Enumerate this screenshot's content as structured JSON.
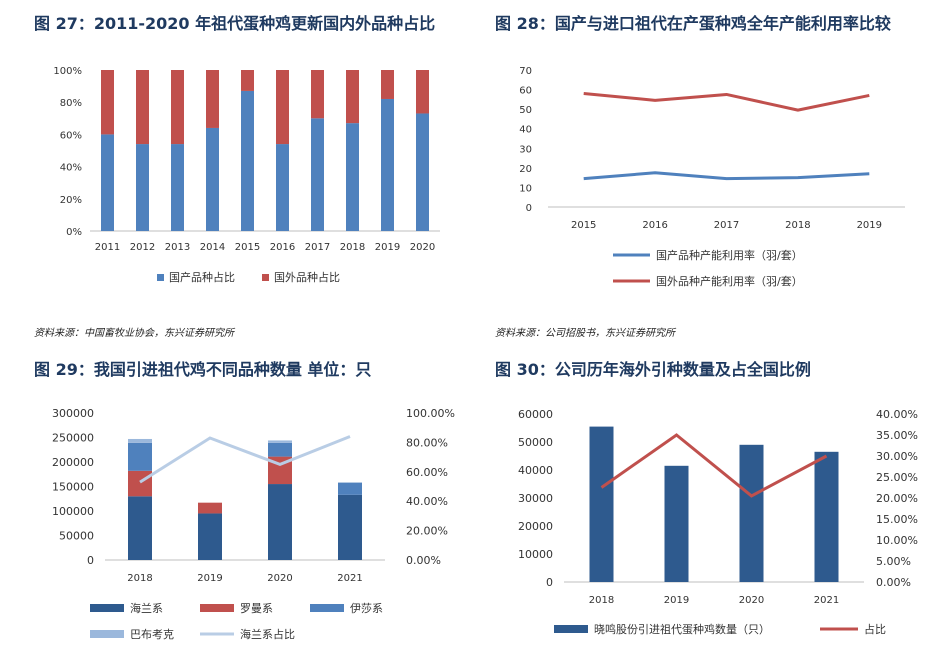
{
  "titles": {
    "fig27": "图 27：2011-2020 年祖代蛋种鸡更新国内外品种占比",
    "fig28": "图 28：国产与进口祖代在产蛋种鸡全年产能利用率比较",
    "fig29": "图 29：我国引进祖代鸡不同品种数量 单位：只",
    "fig30": "图 30：公司历年海外引种数量及占全国比例"
  },
  "sources": {
    "left": "资料来源：中国畜牧业协会，东兴证券研究所",
    "right": "资料来源：公司招股书，东兴证券研究所"
  },
  "chart_data": [
    {
      "id": "fig27",
      "type": "bar",
      "stacked": true,
      "categories": [
        "2011",
        "2012",
        "2013",
        "2014",
        "2015",
        "2016",
        "2017",
        "2018",
        "2019",
        "2020"
      ],
      "series": [
        {
          "name": "国产品种占比",
          "color": "#4f81bd",
          "values": [
            60,
            54,
            54,
            64,
            87,
            54,
            70,
            67,
            82,
            73
          ]
        },
        {
          "name": "国外品种占比",
          "color": "#c0504d",
          "values": [
            40,
            46,
            46,
            36,
            13,
            46,
            30,
            33,
            18,
            27
          ]
        }
      ],
      "ylim": [
        0,
        100
      ],
      "yticks": [
        "0%",
        "20%",
        "40%",
        "60%",
        "80%",
        "100%"
      ],
      "legend": "bottom"
    },
    {
      "id": "fig28",
      "type": "line",
      "categories": [
        "2015",
        "2016",
        "2017",
        "2018",
        "2019"
      ],
      "series": [
        {
          "name": "国产品种产能利用率（羽/套）",
          "color": "#4f81bd",
          "values": [
            14.5,
            17.5,
            14.5,
            15.0,
            17.0
          ]
        },
        {
          "name": "国外品种产能利用率（羽/套）",
          "color": "#c0504d",
          "values": [
            58,
            54.5,
            57.5,
            49.5,
            57
          ]
        }
      ],
      "ylim": [
        0,
        70
      ],
      "yticks": [
        "0",
        "10",
        "20",
        "30",
        "40",
        "50",
        "60",
        "70"
      ],
      "legend": "bottom"
    },
    {
      "id": "fig29",
      "type": "bar",
      "stacked": true,
      "categories": [
        "2018",
        "2019",
        "2020",
        "2021"
      ],
      "series": [
        {
          "name": "海兰系",
          "color": "#2e5a8e",
          "values": [
            130000,
            95000,
            155000,
            133000
          ]
        },
        {
          "name": "罗曼系",
          "color": "#c0504d",
          "values": [
            52000,
            22000,
            56000,
            0
          ]
        },
        {
          "name": "伊莎系",
          "color": "#4f81bd",
          "values": [
            57000,
            0,
            28000,
            25000
          ]
        },
        {
          "name": "巴布考克",
          "color": "#9bb8dc",
          "values": [
            8000,
            0,
            5000,
            0
          ]
        }
      ],
      "line_series": {
        "name": "海兰系占比",
        "color": "#b9cde5",
        "values": [
          53,
          83,
          65,
          84
        ]
      },
      "ylim_left": [
        0,
        300000
      ],
      "yticks_left": [
        "0",
        "50000",
        "100000",
        "150000",
        "200000",
        "250000",
        "300000"
      ],
      "ylim_right": [
        0,
        100
      ],
      "yticks_right": [
        "0.00%",
        "20.00%",
        "40.00%",
        "60.00%",
        "80.00%",
        "100.00%"
      ],
      "legend": "bottom"
    },
    {
      "id": "fig30",
      "type": "bar",
      "categories": [
        "2018",
        "2019",
        "2020",
        "2021"
      ],
      "series": [
        {
          "name": "晓鸣股份引进祖代蛋种鸡数量（只）",
          "color": "#2e5a8e",
          "values": [
            55500,
            41500,
            49000,
            46500
          ]
        }
      ],
      "line_series": {
        "name": "占比",
        "color": "#c0504d",
        "values": [
          22.5,
          35.0,
          20.5,
          30.0
        ]
      },
      "ylim_left": [
        0,
        60000
      ],
      "yticks_left": [
        "0",
        "10000",
        "20000",
        "30000",
        "40000",
        "50000",
        "60000"
      ],
      "ylim_right": [
        0,
        40
      ],
      "yticks_right": [
        "0.00%",
        "5.00%",
        "10.00%",
        "15.00%",
        "20.00%",
        "25.00%",
        "30.00%",
        "35.00%",
        "40.00%"
      ],
      "legend": "bottom"
    }
  ]
}
